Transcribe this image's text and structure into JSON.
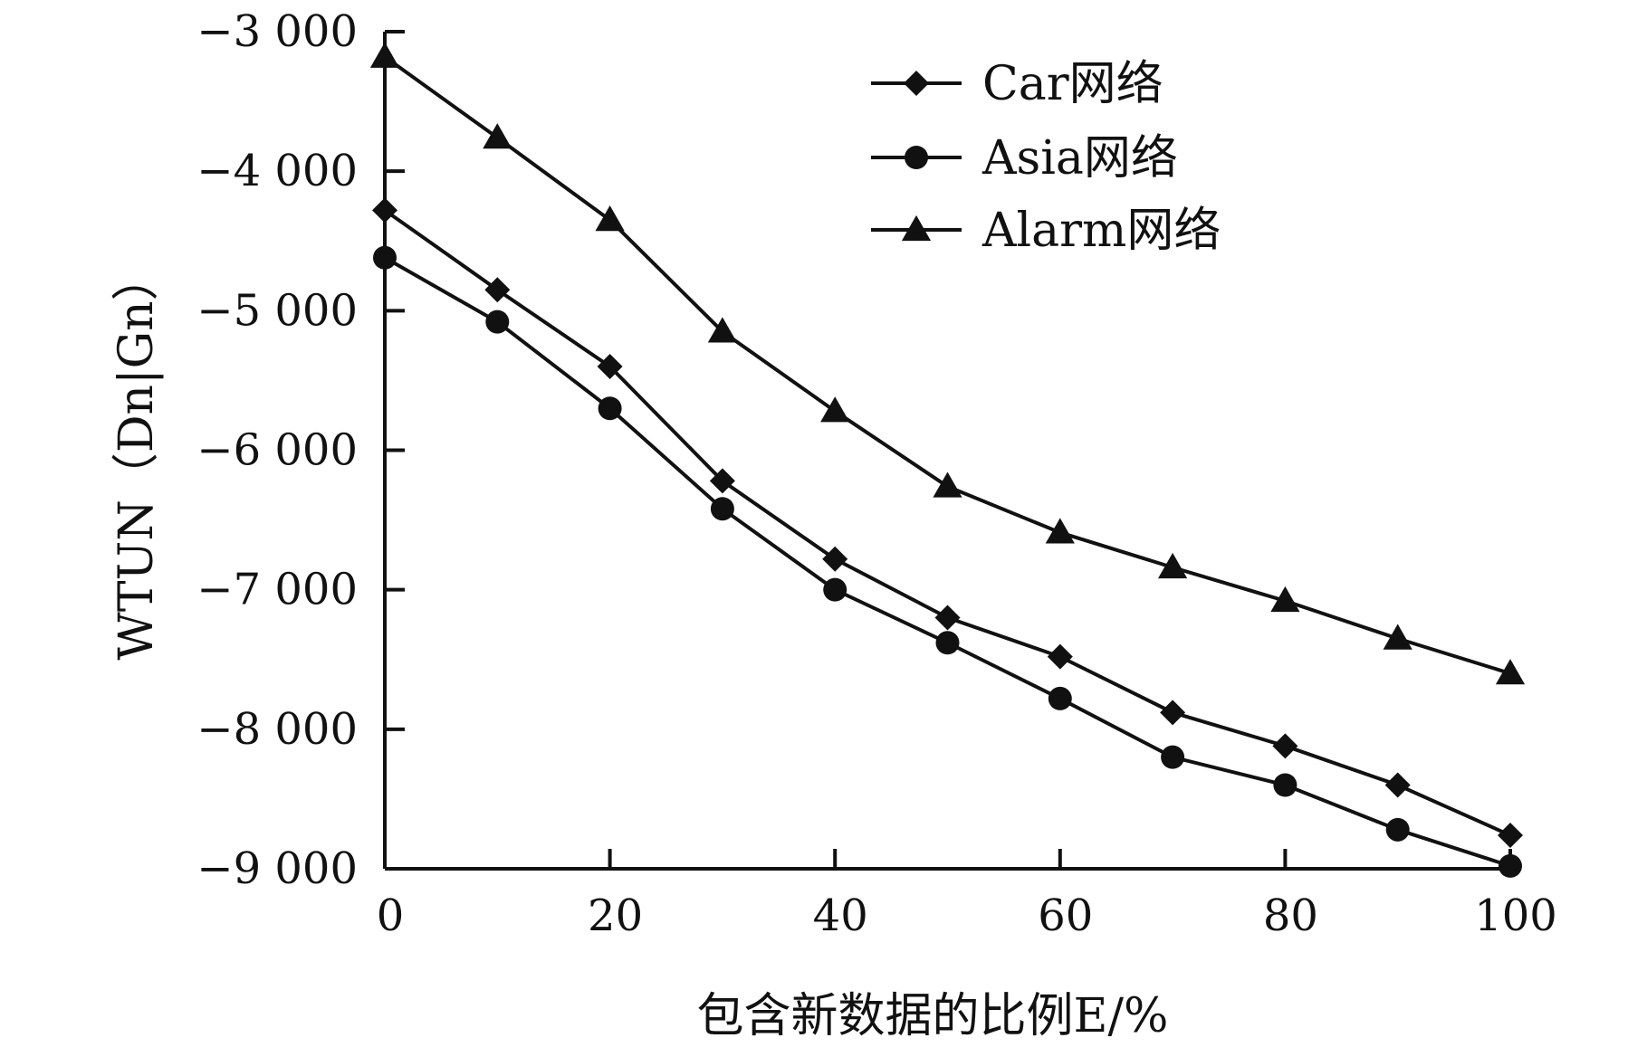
{
  "chart_data": {
    "type": "line",
    "title": "",
    "xlabel": "包含新数据的比例E/%",
    "ylabel": "WTUN（Dn|Gn）",
    "xlim": [
      0,
      100
    ],
    "ylim": [
      -9000,
      -3000
    ],
    "x": [
      0,
      10,
      20,
      30,
      40,
      50,
      60,
      70,
      80,
      90,
      100
    ],
    "x_ticks": [
      0,
      20,
      40,
      60,
      80,
      100
    ],
    "x_tick_labels": [
      "0",
      "20",
      "40",
      "60",
      "80",
      "100"
    ],
    "y_ticks": [
      -3000,
      -4000,
      -5000,
      -6000,
      -7000,
      -8000,
      -9000
    ],
    "y_tick_labels": [
      "−3 000",
      "−4 000",
      "−5 000",
      "−6 000",
      "−7 000",
      "−8 000",
      "−9 000"
    ],
    "grid": false,
    "legend_position": "top-right",
    "series": [
      {
        "name": "Car网络",
        "marker": "diamond",
        "color": "#111111",
        "values": [
          -4280,
          -4850,
          -5400,
          -6220,
          -6780,
          -7200,
          -7480,
          -7880,
          -8120,
          -8400,
          -8760
        ]
      },
      {
        "name": "Asia网络",
        "marker": "circle",
        "color": "#111111",
        "values": [
          -4620,
          -5080,
          -5700,
          -6420,
          -7000,
          -7380,
          -7780,
          -8200,
          -8400,
          -8720,
          -8980
        ]
      },
      {
        "name": "Alarm网络",
        "marker": "triangle",
        "color": "#111111",
        "values": [
          -3180,
          -3760,
          -4350,
          -5150,
          -5720,
          -6260,
          -6590,
          -6840,
          -7080,
          -7350,
          -7600
        ]
      }
    ]
  }
}
